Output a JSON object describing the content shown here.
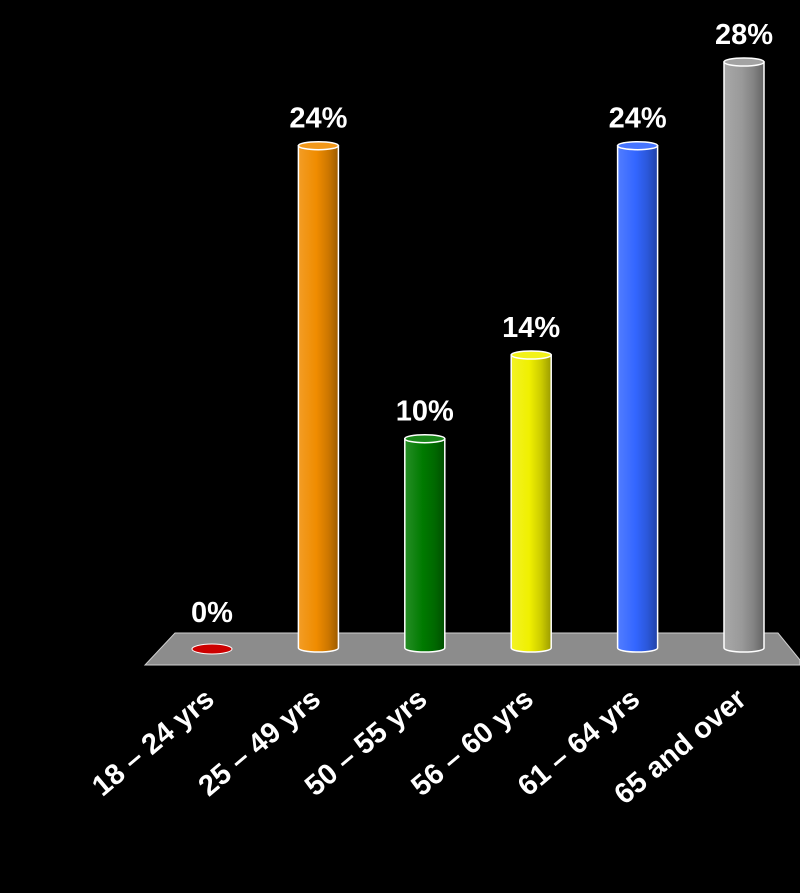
{
  "chart_data": {
    "type": "bar",
    "title": "",
    "xlabel": "",
    "ylabel": "",
    "ylim": [
      0,
      28
    ],
    "categories": [
      "18 – 24 yrs",
      "25 – 49 yrs",
      "50 – 55 yrs",
      "56 – 60 yrs",
      "61 – 64 yrs",
      "65 and over"
    ],
    "values": [
      0,
      24,
      10,
      14,
      24,
      28
    ],
    "value_labels": [
      "0%",
      "24%",
      "10%",
      "14%",
      "24%",
      "28%"
    ],
    "colors": [
      "#cc0000",
      "#f08c00",
      "#007a00",
      "#f0f000",
      "#3366ff",
      "#999999"
    ],
    "grid": false,
    "legend": "none",
    "style": "3d-cylinder",
    "floor_color": "#8c8c8c",
    "background": "#000000"
  }
}
